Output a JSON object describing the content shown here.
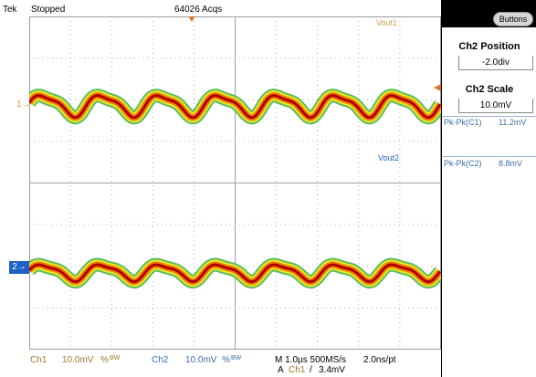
{
  "status": {
    "brand": "Tek",
    "run_state": "Stopped",
    "acq_count": "64026 Acqs"
  },
  "traces": {
    "ch1": {
      "marker": "1",
      "label": "Vout1",
      "color": "#c9a34a"
    },
    "ch2": {
      "marker": "2",
      "label": "Vout2",
      "color": "#1f62c6"
    },
    "trigger_marker_color": "#e07020",
    "waveform_core_color": "#b00000",
    "waveform_mid_color": "#f07d00",
    "waveform_outer_color": "#e8e62a",
    "waveform_fringe_color": "#4fb64a"
  },
  "side_panel": {
    "buttons_label": "Buttons",
    "position_title": "Ch2 Position",
    "position_value": "-2.0div",
    "scale_title": "Ch2 Scale",
    "scale_value": "10.0mV",
    "measurements": [
      {
        "label": "Pk-Pk(C1)",
        "value": "11.2mV"
      },
      {
        "label": "Pk-Pk(C2)",
        "value": "8.8mV"
      }
    ]
  },
  "readout": {
    "ch1": {
      "name": "Ch1",
      "scale": "10.0mV",
      "coupling": "%",
      "bw": "BW"
    },
    "ch2": {
      "name": "Ch2",
      "scale": "10.0mV",
      "coupling": "%",
      "bw": "BW"
    },
    "timebase": "M 1.0µs 500MS/s",
    "sample_interval": "2.0ns/pt",
    "trigger": {
      "prefix": "A",
      "source": "Ch1",
      "slope": "/",
      "level": "3.4mV"
    }
  }
}
